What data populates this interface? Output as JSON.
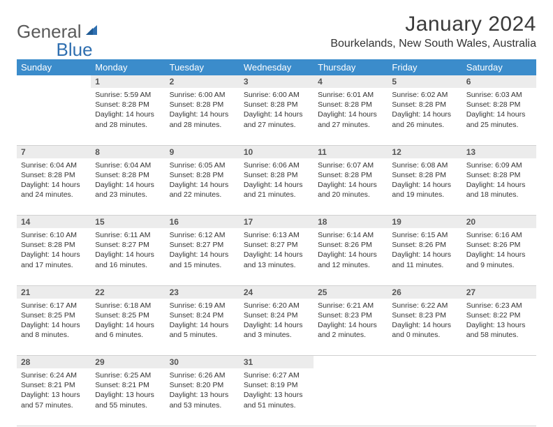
{
  "brand": {
    "part1": "General",
    "part2": "Blue"
  },
  "title": "January 2024",
  "location": "Bourkelands, New South Wales, Australia",
  "colors": {
    "header_bg": "#3b8ccb",
    "header_text": "#ffffff",
    "daynum_bg": "#ececec",
    "text": "#333333",
    "logo_gray": "#5a5a5a",
    "logo_blue": "#2f6fb0"
  },
  "day_headers": [
    "Sunday",
    "Monday",
    "Tuesday",
    "Wednesday",
    "Thursday",
    "Friday",
    "Saturday"
  ],
  "weeks": [
    {
      "nums": [
        "",
        "1",
        "2",
        "3",
        "4",
        "5",
        "6"
      ],
      "cells": [
        null,
        {
          "sunrise": "Sunrise: 5:59 AM",
          "sunset": "Sunset: 8:28 PM",
          "daylight": "Daylight: 14 hours and 28 minutes."
        },
        {
          "sunrise": "Sunrise: 6:00 AM",
          "sunset": "Sunset: 8:28 PM",
          "daylight": "Daylight: 14 hours and 28 minutes."
        },
        {
          "sunrise": "Sunrise: 6:00 AM",
          "sunset": "Sunset: 8:28 PM",
          "daylight": "Daylight: 14 hours and 27 minutes."
        },
        {
          "sunrise": "Sunrise: 6:01 AM",
          "sunset": "Sunset: 8:28 PM",
          "daylight": "Daylight: 14 hours and 27 minutes."
        },
        {
          "sunrise": "Sunrise: 6:02 AM",
          "sunset": "Sunset: 8:28 PM",
          "daylight": "Daylight: 14 hours and 26 minutes."
        },
        {
          "sunrise": "Sunrise: 6:03 AM",
          "sunset": "Sunset: 8:28 PM",
          "daylight": "Daylight: 14 hours and 25 minutes."
        }
      ]
    },
    {
      "nums": [
        "7",
        "8",
        "9",
        "10",
        "11",
        "12",
        "13"
      ],
      "cells": [
        {
          "sunrise": "Sunrise: 6:04 AM",
          "sunset": "Sunset: 8:28 PM",
          "daylight": "Daylight: 14 hours and 24 minutes."
        },
        {
          "sunrise": "Sunrise: 6:04 AM",
          "sunset": "Sunset: 8:28 PM",
          "daylight": "Daylight: 14 hours and 23 minutes."
        },
        {
          "sunrise": "Sunrise: 6:05 AM",
          "sunset": "Sunset: 8:28 PM",
          "daylight": "Daylight: 14 hours and 22 minutes."
        },
        {
          "sunrise": "Sunrise: 6:06 AM",
          "sunset": "Sunset: 8:28 PM",
          "daylight": "Daylight: 14 hours and 21 minutes."
        },
        {
          "sunrise": "Sunrise: 6:07 AM",
          "sunset": "Sunset: 8:28 PM",
          "daylight": "Daylight: 14 hours and 20 minutes."
        },
        {
          "sunrise": "Sunrise: 6:08 AM",
          "sunset": "Sunset: 8:28 PM",
          "daylight": "Daylight: 14 hours and 19 minutes."
        },
        {
          "sunrise": "Sunrise: 6:09 AM",
          "sunset": "Sunset: 8:28 PM",
          "daylight": "Daylight: 14 hours and 18 minutes."
        }
      ]
    },
    {
      "nums": [
        "14",
        "15",
        "16",
        "17",
        "18",
        "19",
        "20"
      ],
      "cells": [
        {
          "sunrise": "Sunrise: 6:10 AM",
          "sunset": "Sunset: 8:28 PM",
          "daylight": "Daylight: 14 hours and 17 minutes."
        },
        {
          "sunrise": "Sunrise: 6:11 AM",
          "sunset": "Sunset: 8:27 PM",
          "daylight": "Daylight: 14 hours and 16 minutes."
        },
        {
          "sunrise": "Sunrise: 6:12 AM",
          "sunset": "Sunset: 8:27 PM",
          "daylight": "Daylight: 14 hours and 15 minutes."
        },
        {
          "sunrise": "Sunrise: 6:13 AM",
          "sunset": "Sunset: 8:27 PM",
          "daylight": "Daylight: 14 hours and 13 minutes."
        },
        {
          "sunrise": "Sunrise: 6:14 AM",
          "sunset": "Sunset: 8:26 PM",
          "daylight": "Daylight: 14 hours and 12 minutes."
        },
        {
          "sunrise": "Sunrise: 6:15 AM",
          "sunset": "Sunset: 8:26 PM",
          "daylight": "Daylight: 14 hours and 11 minutes."
        },
        {
          "sunrise": "Sunrise: 6:16 AM",
          "sunset": "Sunset: 8:26 PM",
          "daylight": "Daylight: 14 hours and 9 minutes."
        }
      ]
    },
    {
      "nums": [
        "21",
        "22",
        "23",
        "24",
        "25",
        "26",
        "27"
      ],
      "cells": [
        {
          "sunrise": "Sunrise: 6:17 AM",
          "sunset": "Sunset: 8:25 PM",
          "daylight": "Daylight: 14 hours and 8 minutes."
        },
        {
          "sunrise": "Sunrise: 6:18 AM",
          "sunset": "Sunset: 8:25 PM",
          "daylight": "Daylight: 14 hours and 6 minutes."
        },
        {
          "sunrise": "Sunrise: 6:19 AM",
          "sunset": "Sunset: 8:24 PM",
          "daylight": "Daylight: 14 hours and 5 minutes."
        },
        {
          "sunrise": "Sunrise: 6:20 AM",
          "sunset": "Sunset: 8:24 PM",
          "daylight": "Daylight: 14 hours and 3 minutes."
        },
        {
          "sunrise": "Sunrise: 6:21 AM",
          "sunset": "Sunset: 8:23 PM",
          "daylight": "Daylight: 14 hours and 2 minutes."
        },
        {
          "sunrise": "Sunrise: 6:22 AM",
          "sunset": "Sunset: 8:23 PM",
          "daylight": "Daylight: 14 hours and 0 minutes."
        },
        {
          "sunrise": "Sunrise: 6:23 AM",
          "sunset": "Sunset: 8:22 PM",
          "daylight": "Daylight: 13 hours and 58 minutes."
        }
      ]
    },
    {
      "nums": [
        "28",
        "29",
        "30",
        "31",
        "",
        "",
        ""
      ],
      "cells": [
        {
          "sunrise": "Sunrise: 6:24 AM",
          "sunset": "Sunset: 8:21 PM",
          "daylight": "Daylight: 13 hours and 57 minutes."
        },
        {
          "sunrise": "Sunrise: 6:25 AM",
          "sunset": "Sunset: 8:21 PM",
          "daylight": "Daylight: 13 hours and 55 minutes."
        },
        {
          "sunrise": "Sunrise: 6:26 AM",
          "sunset": "Sunset: 8:20 PM",
          "daylight": "Daylight: 13 hours and 53 minutes."
        },
        {
          "sunrise": "Sunrise: 6:27 AM",
          "sunset": "Sunset: 8:19 PM",
          "daylight": "Daylight: 13 hours and 51 minutes."
        },
        null,
        null,
        null
      ]
    }
  ]
}
